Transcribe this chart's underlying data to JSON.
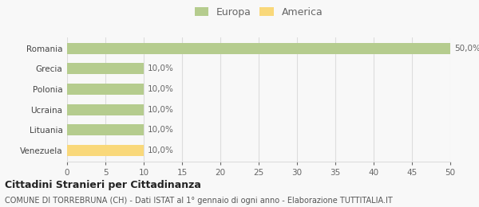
{
  "categories": [
    "Venezuela",
    "Lituania",
    "Ucraina",
    "Polonia",
    "Grecia",
    "Romania"
  ],
  "values": [
    10.0,
    10.0,
    10.0,
    10.0,
    10.0,
    50.0
  ],
  "colors": [
    "#f9d87a",
    "#b5cc8e",
    "#b5cc8e",
    "#b5cc8e",
    "#b5cc8e",
    "#b5cc8e"
  ],
  "bar_labels": [
    "10,0%",
    "10,0%",
    "10,0%",
    "10,0%",
    "10,0%",
    "50,0%"
  ],
  "legend_labels": [
    "Europa",
    "America"
  ],
  "legend_colors": [
    "#b5cc8e",
    "#f9d87a"
  ],
  "xlim": [
    0,
    50
  ],
  "xticks": [
    0,
    5,
    10,
    15,
    20,
    25,
    30,
    35,
    40,
    45,
    50
  ],
  "title": "Cittadini Stranieri per Cittadinanza",
  "subtitle": "COMUNE DI TORREBRUNA (CH) - Dati ISTAT al 1° gennaio di ogni anno - Elaborazione TUTTITALIA.IT",
  "bg_color": "#f8f8f8",
  "grid_color": "#dddddd"
}
